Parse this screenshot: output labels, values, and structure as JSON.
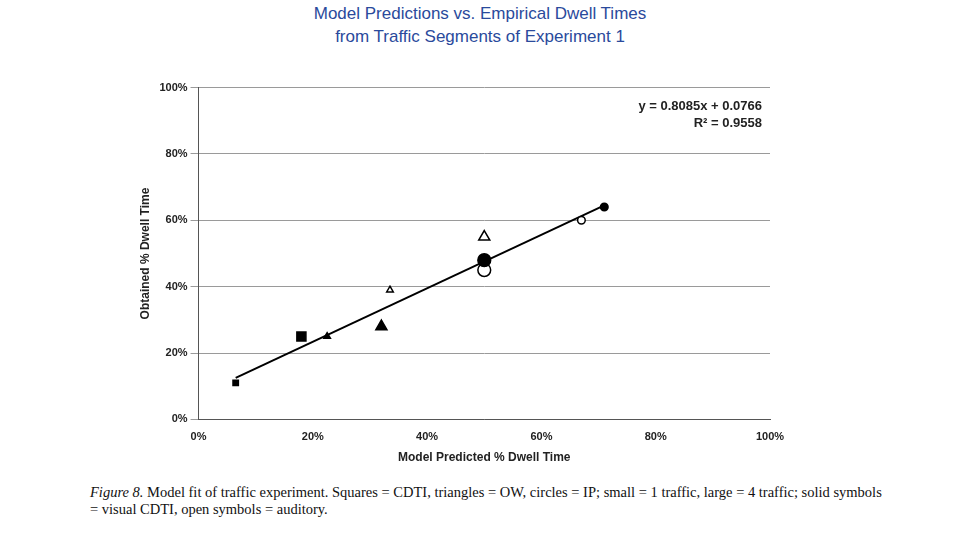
{
  "chart_data": {
    "type": "scatter",
    "title": [
      "Model Predictions vs. Empirical Dwell Times",
      "from Traffic Segments of Experiment 1"
    ],
    "x_label": "Model Predicted % Dwell Time",
    "y_label": "Obtained % Dwell Time",
    "annotations": [
      "y = 0.8085x + 0.0766",
      "R² = 0.9558"
    ],
    "caption": {
      "label": "Figure 8.",
      "text": "Model fit of traffic experiment. Squares = CDTI, triangles = OW, circles = IP; small = 1 traffic, large = 4 traffic; solid symbols = visual CDTI, open symbols = auditory."
    },
    "xlim": [
      0,
      100
    ],
    "xticks": [
      {
        "value": 0,
        "label": "0%"
      },
      {
        "value": 20,
        "label": "20%"
      },
      {
        "value": 40,
        "label": "40%"
      },
      {
        "value": 60,
        "label": "60%"
      },
      {
        "value": 80,
        "label": "80%"
      },
      {
        "value": 100,
        "label": "100%"
      }
    ],
    "ylim": [
      0,
      100
    ],
    "yticks": [
      {
        "value": 0,
        "label": "0%"
      },
      {
        "value": 20,
        "label": "20%"
      },
      {
        "value": 40,
        "label": "40%"
      },
      {
        "value": 60,
        "label": "60%"
      },
      {
        "value": 80,
        "label": "80%"
      },
      {
        "value": 100,
        "label": "100%"
      }
    ],
    "grid": "y",
    "series": [
      {
        "marker": "square",
        "color": "#000000",
        "x": [
          6.5,
          18
        ],
        "values": [
          11,
          25
        ],
        "traffic": [
          1,
          4
        ]
      },
      {
        "marker": "triangle",
        "color": "#000000",
        "x": [
          22.5,
          32
        ],
        "values": [
          25,
          28
        ],
        "traffic": [
          1,
          4
        ]
      },
      {
        "marker": "triangle-open",
        "color": "#000000",
        "x": [
          33.5,
          50
        ],
        "values": [
          39,
          55
        ],
        "traffic": [
          1,
          4
        ]
      },
      {
        "marker": "circle",
        "color": "#000000",
        "x": [
          71,
          50
        ],
        "values": [
          64,
          48
        ],
        "traffic": [
          1,
          4
        ]
      },
      {
        "marker": "circle-open",
        "color": "#000000",
        "x": [
          67,
          50
        ],
        "values": [
          60,
          45
        ],
        "traffic": [
          1,
          4
        ]
      },
      {
        "type": "line",
        "line_style": "solid",
        "color": "#000000",
        "x": [
          6.5,
          71
        ],
        "values": [
          12.5,
          64.5
        ]
      }
    ]
  }
}
